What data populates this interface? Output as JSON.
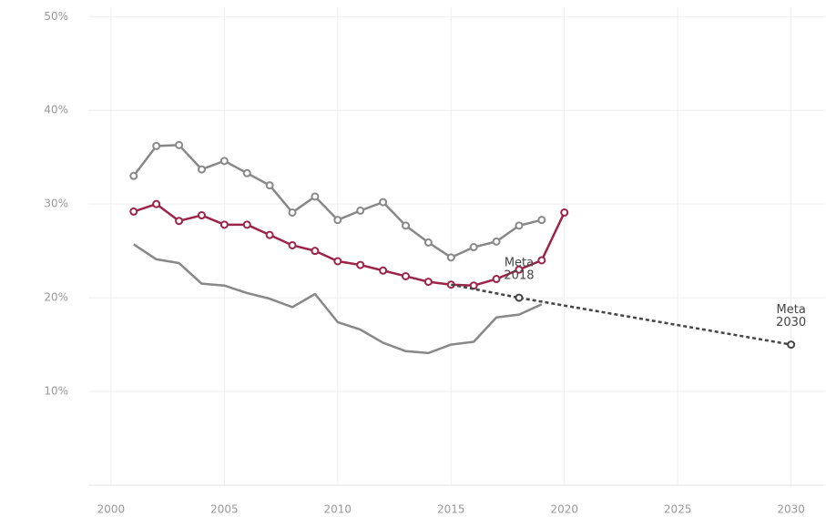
{
  "chart_data": {
    "type": "line",
    "xlim": [
      1999,
      2031.5
    ],
    "xticks": [
      2000,
      2005,
      2010,
      2015,
      2020,
      2025,
      2030
    ],
    "ylim": [
      0,
      51
    ],
    "yticks": [
      {
        "value": 10,
        "label": "10%"
      },
      {
        "value": 20,
        "label": "20%"
      },
      {
        "value": 30,
        "label": "30%"
      },
      {
        "value": 40,
        "label": "40%"
      },
      {
        "value": 50,
        "label": "50%"
      }
    ],
    "grid": true,
    "series": [
      {
        "color": "#888888",
        "width": 2.5,
        "markers": false,
        "x": [
          2001,
          2002,
          2003,
          2004,
          2005,
          2006,
          2007,
          2008,
          2009,
          2010,
          2011,
          2012,
          2013,
          2014,
          2015,
          2016,
          2017,
          2018,
          2019
        ],
        "values": [
          25.7,
          24.1,
          23.7,
          21.5,
          21.3,
          20.5,
          19.9,
          19.0,
          20.4,
          17.4,
          16.6,
          15.2,
          14.3,
          14.1,
          15.0,
          15.3,
          17.9,
          18.2,
          19.3
        ]
      },
      {
        "color": "#888888",
        "width": 2.5,
        "markers": true,
        "x": [
          2001,
          2002,
          2003,
          2004,
          2005,
          2006,
          2007,
          2008,
          2009,
          2010,
          2011,
          2012,
          2013,
          2014,
          2015,
          2016,
          2017,
          2018,
          2019
        ],
        "values": [
          33.0,
          36.2,
          36.3,
          33.7,
          34.6,
          33.3,
          32.0,
          29.1,
          30.8,
          28.3,
          29.3,
          30.2,
          27.7,
          25.9,
          24.3,
          25.4,
          26.0,
          27.7,
          28.3
        ]
      },
      {
        "color": "#9b2449",
        "width": 2.5,
        "markers": true,
        "x": [
          2001,
          2002,
          2003,
          2004,
          2005,
          2006,
          2007,
          2008,
          2009,
          2010,
          2011,
          2012,
          2013,
          2014,
          2015,
          2016,
          2017,
          2018,
          2019,
          2020
        ],
        "values": [
          29.2,
          30.0,
          28.2,
          28.8,
          27.8,
          27.8,
          26.7,
          25.6,
          25.0,
          23.9,
          23.5,
          22.9,
          22.3,
          21.7,
          21.4,
          21.3,
          22.0,
          23.0,
          24.0,
          29.1
        ]
      },
      {
        "color": "#444444",
        "width": 2.5,
        "dashed": true,
        "markers": true,
        "x": [
          2015,
          2018,
          2030
        ],
        "values": [
          21.4,
          20,
          15
        ],
        "point_labels": [
          null,
          [
            "Meta",
            "2018"
          ],
          [
            "Meta",
            "2030"
          ]
        ]
      }
    ]
  }
}
